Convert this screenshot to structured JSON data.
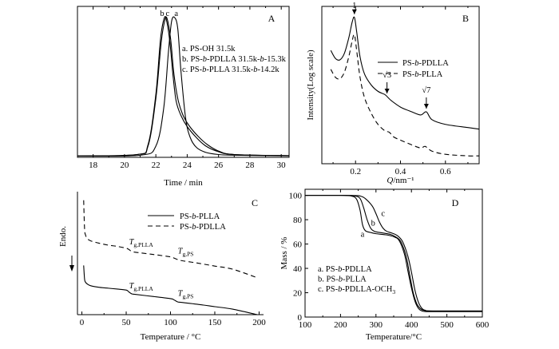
{
  "chart_data": [
    {
      "id": "A",
      "type": "line",
      "panel_label": "A",
      "xlabel": "Time / min",
      "ylabel": "",
      "xlim": [
        17,
        30.5
      ],
      "ylim": [
        0,
        1.08
      ],
      "xticks": [
        18,
        20,
        22,
        24,
        26,
        28,
        30
      ],
      "legend_position": "upper right",
      "legend": [
        {
          "key": "a",
          "text": "a. PS-OH 31.5k"
        },
        {
          "key": "b",
          "text": "b. PS-b-PDLLA 31.5k-b-15.3k"
        },
        {
          "key": "c",
          "text": "c. PS-b-PLLA 31.5k-b-14.2k"
        }
      ],
      "peak_labels": [
        {
          "text": "b",
          "x": 22.4
        },
        {
          "text": "c",
          "x": 22.75
        },
        {
          "text": "a",
          "x": 23.3
        }
      ],
      "series": [
        {
          "name": "a",
          "dash": "solid",
          "x": [
            17.0,
            21.0,
            22.0,
            22.5,
            22.8,
            23.0,
            23.2,
            23.4,
            23.6,
            23.9,
            24.2,
            24.6,
            25.2,
            26.0,
            27.0,
            30.5
          ],
          "y": [
            0.01,
            0.015,
            0.08,
            0.35,
            0.75,
            0.97,
            1.0,
            0.92,
            0.62,
            0.28,
            0.14,
            0.07,
            0.035,
            0.02,
            0.015,
            0.01
          ]
        },
        {
          "name": "b",
          "dash": "solid",
          "x": [
            17.0,
            20.8,
            21.5,
            22.0,
            22.3,
            22.55,
            22.7,
            22.9,
            23.1,
            23.3,
            23.6,
            24.0,
            24.6,
            25.2,
            26.0,
            27.0,
            30.5
          ],
          "y": [
            0.01,
            0.02,
            0.09,
            0.45,
            0.85,
            1.0,
            0.97,
            0.82,
            0.58,
            0.4,
            0.3,
            0.22,
            0.14,
            0.08,
            0.04,
            0.02,
            0.012
          ]
        },
        {
          "name": "c",
          "dash": "solid",
          "x": [
            17.0,
            20.8,
            21.5,
            22.0,
            22.35,
            22.6,
            22.75,
            22.95,
            23.15,
            23.4,
            23.7,
            24.1,
            24.7,
            25.3,
            26.0,
            27.0,
            30.5
          ],
          "y": [
            0.01,
            0.02,
            0.08,
            0.42,
            0.83,
            0.99,
            0.98,
            0.84,
            0.6,
            0.42,
            0.31,
            0.23,
            0.15,
            0.09,
            0.045,
            0.02,
            0.012
          ]
        }
      ]
    },
    {
      "id": "B",
      "type": "line",
      "panel_label": "B",
      "xlabel": "Q/nm⁻¹",
      "ylabel": "Intensity(Log scale)",
      "xlim": [
        0.05,
        0.75
      ],
      "ylim": [
        0,
        1
      ],
      "xticks": [
        0.2,
        0.4,
        0.6
      ],
      "legend_position": "upper right",
      "legend": [
        {
          "text": "PS-b-PDLLA",
          "dash": "solid"
        },
        {
          "text": "PS-b-PLLA",
          "dash": "dashed"
        }
      ],
      "annotations": [
        {
          "text": "1",
          "x": 0.195
        },
        {
          "text": "√3",
          "x": 0.34
        },
        {
          "text": "√7",
          "x": 0.515
        }
      ],
      "series": [
        {
          "name": "PS-b-PDLLA",
          "dash": "solid",
          "x": [
            0.09,
            0.11,
            0.13,
            0.15,
            0.17,
            0.185,
            0.195,
            0.205,
            0.22,
            0.24,
            0.27,
            0.3,
            0.33,
            0.345,
            0.36,
            0.4,
            0.45,
            0.49,
            0.515,
            0.54,
            0.6,
            0.7,
            0.75
          ],
          "y": [
            0.72,
            0.67,
            0.66,
            0.7,
            0.8,
            0.9,
            0.93,
            0.84,
            0.68,
            0.57,
            0.5,
            0.46,
            0.44,
            0.42,
            0.4,
            0.36,
            0.33,
            0.31,
            0.33,
            0.28,
            0.25,
            0.23,
            0.22
          ]
        },
        {
          "name": "PS-b-PLLA",
          "dash": "dashed",
          "x": [
            0.09,
            0.11,
            0.13,
            0.15,
            0.17,
            0.185,
            0.195,
            0.205,
            0.22,
            0.24,
            0.27,
            0.3,
            0.33,
            0.35,
            0.37,
            0.4,
            0.45,
            0.49,
            0.51,
            0.54,
            0.6,
            0.7,
            0.75
          ],
          "y": [
            0.6,
            0.55,
            0.54,
            0.58,
            0.68,
            0.78,
            0.82,
            0.72,
            0.55,
            0.42,
            0.32,
            0.25,
            0.21,
            0.2,
            0.17,
            0.15,
            0.12,
            0.1,
            0.11,
            0.08,
            0.06,
            0.05,
            0.05
          ]
        }
      ]
    },
    {
      "id": "C",
      "type": "line",
      "panel_label": "C",
      "xlabel": "Temperature / °C",
      "ylabel": "Endo.",
      "xlim": [
        -5,
        205
      ],
      "ylim": [
        0,
        1
      ],
      "xticks": [
        0,
        50,
        100,
        150,
        200
      ],
      "legend_position": "upper middle",
      "legend": [
        {
          "text": "PS-b-PLLA",
          "dash": "solid"
        },
        {
          "text": "PS-b-PDLLA",
          "dash": "dashed"
        }
      ],
      "transition_labels": [
        {
          "text": "Tg,PLLA",
          "sub": "g,PLLA",
          "series": "PS-b-PDLLA",
          "x": 55
        },
        {
          "text": "Tg,PS",
          "sub": "g,PS",
          "series": "PS-b-PDLLA",
          "x": 110
        },
        {
          "text": "Tg,PLLA",
          "sub": "g,PLLA",
          "series": "PS-b-PLLA",
          "x": 55
        },
        {
          "text": "Tg,PS",
          "sub": "g,PS",
          "series": "PS-b-PLLA",
          "x": 110
        }
      ],
      "series": [
        {
          "name": "PS-b-PLLA",
          "dash": "solid",
          "x": [
            2,
            3,
            4,
            6,
            10,
            20,
            30,
            40,
            50,
            53,
            56,
            60,
            80,
            100,
            104,
            108,
            112,
            130,
            150,
            170,
            198
          ],
          "y": [
            0.4,
            0.29,
            0.265,
            0.25,
            0.235,
            0.222,
            0.215,
            0.208,
            0.2,
            0.185,
            0.17,
            0.165,
            0.148,
            0.13,
            0.12,
            0.104,
            0.1,
            0.085,
            0.065,
            0.045,
            0.0
          ]
        },
        {
          "name": "PS-b-PDLLA",
          "dash": "dashed",
          "x": [
            2,
            3,
            4,
            6,
            10,
            20,
            30,
            40,
            50,
            53,
            56,
            60,
            80,
            100,
            104,
            108,
            112,
            130,
            150,
            170,
            198
          ],
          "y": [
            0.93,
            0.7,
            0.65,
            0.62,
            0.6,
            0.58,
            0.565,
            0.555,
            0.54,
            0.53,
            0.515,
            0.508,
            0.49,
            0.47,
            0.46,
            0.448,
            0.44,
            0.42,
            0.395,
            0.37,
            0.3
          ]
        }
      ]
    },
    {
      "id": "D",
      "type": "line",
      "panel_label": "D",
      "xlabel": "Temperature/°C",
      "ylabel": "Mass / %",
      "xlim": [
        100,
        600
      ],
      "ylim": [
        0,
        105
      ],
      "xticks": [
        100,
        200,
        300,
        400,
        500,
        600
      ],
      "yticks": [
        0,
        20,
        40,
        60,
        80,
        100
      ],
      "legend_position": "lower left",
      "legend": [
        {
          "text": "a. PS-b-PDLLA"
        },
        {
          "text": "b. PS-b-PLLA"
        },
        {
          "text": "c. PS-b-PDLLA-OCH3"
        }
      ],
      "curve_labels": [
        {
          "text": "a",
          "x": 262,
          "y": 66
        },
        {
          "text": "b",
          "x": 292,
          "y": 75
        },
        {
          "text": "c",
          "x": 320,
          "y": 83
        }
      ],
      "series": [
        {
          "name": "a",
          "dash": "solid",
          "x": [
            100,
            200,
            230,
            245,
            255,
            262,
            270,
            285,
            300,
            330,
            350,
            365,
            380,
            390,
            400,
            410,
            420,
            430,
            440,
            460,
            600
          ],
          "y": [
            100,
            100,
            99.5,
            97,
            88,
            76,
            71,
            69.5,
            68.5,
            67.5,
            66,
            63,
            52,
            38,
            24,
            13,
            7,
            5,
            4.5,
            4.5,
            4.5
          ]
        },
        {
          "name": "b",
          "dash": "solid",
          "x": [
            100,
            210,
            240,
            255,
            265,
            275,
            285,
            295,
            310,
            340,
            355,
            370,
            385,
            395,
            405,
            415,
            425,
            435,
            445,
            460,
            600
          ],
          "y": [
            100,
            100,
            99.5,
            97.5,
            90,
            80,
            73,
            70.5,
            69.5,
            68,
            66,
            62,
            50,
            35,
            20,
            11,
            7,
            5.5,
            5,
            5,
            5
          ]
        },
        {
          "name": "c",
          "dash": "solid",
          "x": [
            100,
            230,
            260,
            275,
            290,
            300,
            310,
            320,
            330,
            345,
            360,
            375,
            390,
            400,
            410,
            420,
            430,
            440,
            460,
            600
          ],
          "y": [
            100,
            100,
            99,
            96,
            91,
            85,
            78,
            73,
            70.5,
            69,
            67,
            62,
            50,
            37,
            22,
            12,
            7,
            5.5,
            5,
            5
          ]
        }
      ]
    }
  ]
}
